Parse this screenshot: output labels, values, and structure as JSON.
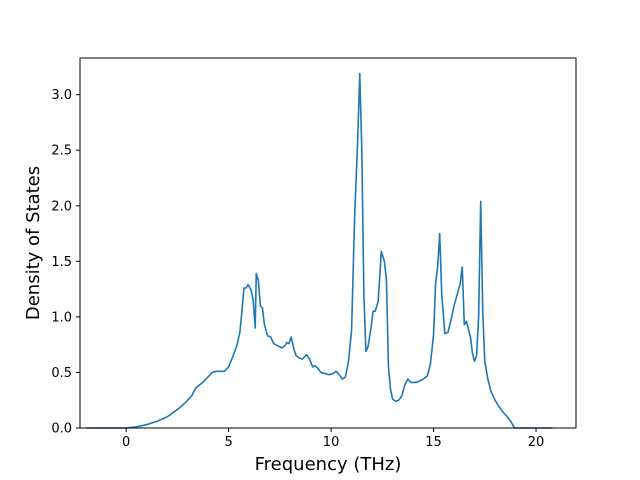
{
  "chart_data": {
    "type": "line",
    "title": "",
    "xlabel": "Frequency (THz)",
    "ylabel": "Density of States",
    "xlim": [
      -2.25,
      21.95
    ],
    "ylim": [
      0,
      3.33
    ],
    "xticks": [
      0,
      5,
      10,
      15,
      20
    ],
    "xtick_labels": [
      "0",
      "5",
      "10",
      "15",
      "20"
    ],
    "yticks": [
      0.0,
      0.5,
      1.0,
      1.5,
      2.0,
      2.5,
      3.0
    ],
    "ytick_labels": [
      "0.0",
      "0.5",
      "1.0",
      "1.5",
      "2.0",
      "2.5",
      "3.0"
    ],
    "grid": false,
    "legend": false,
    "line_color": "#1f77b4",
    "series": [
      {
        "x": [
          -1.95,
          -1.0,
          0.0,
          0.5,
          1.0,
          1.5,
          2.0,
          2.3,
          2.6,
          2.9,
          3.2,
          3.4,
          3.6,
          3.8,
          4.0,
          4.2,
          4.4,
          4.6,
          4.8,
          5.0,
          5.2,
          5.4,
          5.55,
          5.65,
          5.75,
          5.85,
          5.95,
          6.1,
          6.2,
          6.3,
          6.35,
          6.45,
          6.55,
          6.65,
          6.75,
          6.9,
          7.05,
          7.2,
          7.4,
          7.6,
          7.75,
          7.85,
          7.95,
          8.05,
          8.2,
          8.3,
          8.45,
          8.6,
          8.8,
          8.95,
          9.1,
          9.2,
          9.35,
          9.5,
          9.7,
          9.9,
          10.1,
          10.25,
          10.4,
          10.55,
          10.7,
          10.85,
          11.0,
          11.15,
          11.3,
          11.4,
          11.5,
          11.6,
          11.7,
          11.8,
          11.95,
          12.05,
          12.15,
          12.3,
          12.45,
          12.6,
          12.7,
          12.8,
          12.9,
          13.0,
          13.15,
          13.3,
          13.45,
          13.6,
          13.75,
          13.9,
          14.1,
          14.3,
          14.5,
          14.7,
          14.85,
          15.0,
          15.1,
          15.2,
          15.3,
          15.4,
          15.55,
          15.7,
          15.85,
          16.0,
          16.15,
          16.3,
          16.4,
          16.5,
          16.6,
          16.7,
          16.8,
          16.9,
          17.0,
          17.1,
          17.2,
          17.3,
          17.4,
          17.5,
          17.65,
          17.8,
          18.0,
          18.2,
          18.4,
          18.6,
          18.8,
          18.95,
          19.2,
          19.5,
          20.0,
          20.8
        ],
        "y": [
          0.0,
          0.0,
          0.0,
          0.01,
          0.03,
          0.06,
          0.1,
          0.14,
          0.18,
          0.23,
          0.29,
          0.36,
          0.39,
          0.42,
          0.46,
          0.5,
          0.51,
          0.51,
          0.51,
          0.55,
          0.64,
          0.74,
          0.86,
          1.05,
          1.26,
          1.26,
          1.29,
          1.24,
          1.15,
          0.9,
          1.39,
          1.33,
          1.1,
          1.08,
          0.93,
          0.83,
          0.82,
          0.76,
          0.74,
          0.72,
          0.74,
          0.77,
          0.76,
          0.82,
          0.7,
          0.65,
          0.63,
          0.62,
          0.66,
          0.62,
          0.55,
          0.56,
          0.54,
          0.5,
          0.49,
          0.48,
          0.49,
          0.51,
          0.48,
          0.44,
          0.46,
          0.6,
          0.88,
          1.9,
          2.6,
          3.19,
          2.5,
          1.2,
          0.69,
          0.73,
          0.9,
          1.05,
          1.05,
          1.14,
          1.59,
          1.5,
          1.34,
          0.55,
          0.35,
          0.26,
          0.24,
          0.25,
          0.29,
          0.39,
          0.44,
          0.41,
          0.41,
          0.42,
          0.44,
          0.47,
          0.58,
          0.84,
          1.3,
          1.45,
          1.75,
          1.2,
          0.85,
          0.86,
          0.97,
          1.1,
          1.2,
          1.3,
          1.45,
          0.93,
          0.96,
          0.89,
          0.82,
          0.67,
          0.6,
          0.65,
          1.0,
          2.04,
          1.05,
          0.6,
          0.44,
          0.33,
          0.25,
          0.19,
          0.14,
          0.1,
          0.05,
          0.0,
          0.0,
          0.0,
          0.0,
          0.0
        ]
      }
    ]
  }
}
